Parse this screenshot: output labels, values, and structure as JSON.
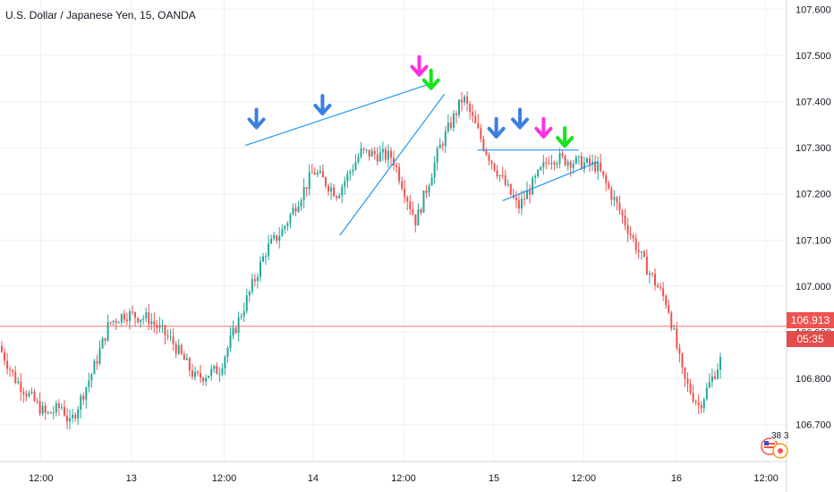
{
  "title": "U.S. Dollar / Japanese Yen, 15, OANDA",
  "price_badge": {
    "value": "106.913",
    "countdown": "05:35"
  },
  "event_badge": "38 3",
  "colors": {
    "up": "#26a69a",
    "down": "#ef5350",
    "trendline": "#2196f3",
    "arrow_blue": "#3d7fe0",
    "arrow_magenta": "#ff2fe6",
    "arrow_green": "#17e51d",
    "price_line": "#ef5350",
    "grid": "#eef0f3",
    "axis_text": "#131722"
  },
  "chart_data": {
    "type": "candlestick",
    "title": "U.S. Dollar / Japanese Yen, 15, OANDA",
    "ylim": [
      106.62,
      107.62
    ],
    "y_ticks": [
      "107.600",
      "107.500",
      "107.400",
      "107.300",
      "107.200",
      "107.100",
      "107.000",
      "106.900",
      "106.800",
      "106.700"
    ],
    "x_ticks": [
      "12:00",
      "13",
      "12:00",
      "14",
      "12:00",
      "15",
      "12:00",
      "16",
      "12:00"
    ],
    "last_price": 106.913,
    "series": [
      {
        "path_points": [
          [
            106.87,
            0
          ],
          [
            106.8,
            0.02
          ],
          [
            106.72,
            0.06
          ],
          [
            106.74,
            0.08
          ],
          [
            106.7,
            0.09
          ],
          [
            106.82,
            0.12
          ],
          [
            106.92,
            0.14
          ],
          [
            106.94,
            0.16
          ],
          [
            106.93,
            0.19
          ],
          [
            106.88,
            0.22
          ],
          [
            106.8,
            0.25
          ],
          [
            106.82,
            0.28
          ],
          [
            106.95,
            0.31
          ],
          [
            107.08,
            0.34
          ],
          [
            107.12,
            0.36
          ],
          [
            107.25,
            0.4
          ],
          [
            107.2,
            0.43
          ],
          [
            107.29,
            0.46
          ],
          [
            107.28,
            0.5
          ],
          [
            107.14,
            0.53
          ],
          [
            107.3,
            0.56
          ],
          [
            107.41,
            0.59
          ],
          [
            107.29,
            0.62
          ],
          [
            107.17,
            0.66
          ],
          [
            107.28,
            0.7
          ],
          [
            107.27,
            0.73
          ],
          [
            107.26,
            0.76
          ],
          [
            107.16,
            0.79
          ],
          [
            107.05,
            0.82
          ],
          [
            106.96,
            0.85
          ],
          [
            106.8,
            0.87
          ],
          [
            106.74,
            0.89
          ],
          [
            106.85,
            0.92
          ],
          [
            106.96,
            0.94
          ],
          [
            106.93,
            0.97
          ],
          [
            106.94,
            1.0
          ]
        ]
      }
    ],
    "trendlines": [
      {
        "from": [
          0.312,
          107.305
        ],
        "to": [
          0.544,
          107.437
        ]
      },
      {
        "from": [
          0.432,
          107.11
        ],
        "to": [
          0.565,
          107.416
        ]
      },
      {
        "from": [
          0.607,
          107.295
        ],
        "to": [
          0.736,
          107.295
        ]
      },
      {
        "from": [
          0.639,
          107.185
        ],
        "to": [
          0.761,
          107.27
        ]
      }
    ],
    "annotations": [
      {
        "type": "arrow",
        "color": "blue",
        "x": 0.326,
        "y": 107.34
      },
      {
        "type": "arrow",
        "color": "blue",
        "x": 0.41,
        "y": 107.37
      },
      {
        "type": "arrow",
        "color": "magenta",
        "x": 0.533,
        "y": 107.454
      },
      {
        "type": "arrow",
        "color": "green",
        "x": 0.548,
        "y": 107.425
      },
      {
        "type": "arrow",
        "color": "blue",
        "x": 0.631,
        "y": 107.32
      },
      {
        "type": "arrow",
        "color": "blue",
        "x": 0.661,
        "y": 107.34
      },
      {
        "type": "arrow",
        "color": "magenta",
        "x": 0.691,
        "y": 107.32
      },
      {
        "type": "arrow",
        "color": "green",
        "x": 0.718,
        "y": 107.3
      }
    ]
  }
}
